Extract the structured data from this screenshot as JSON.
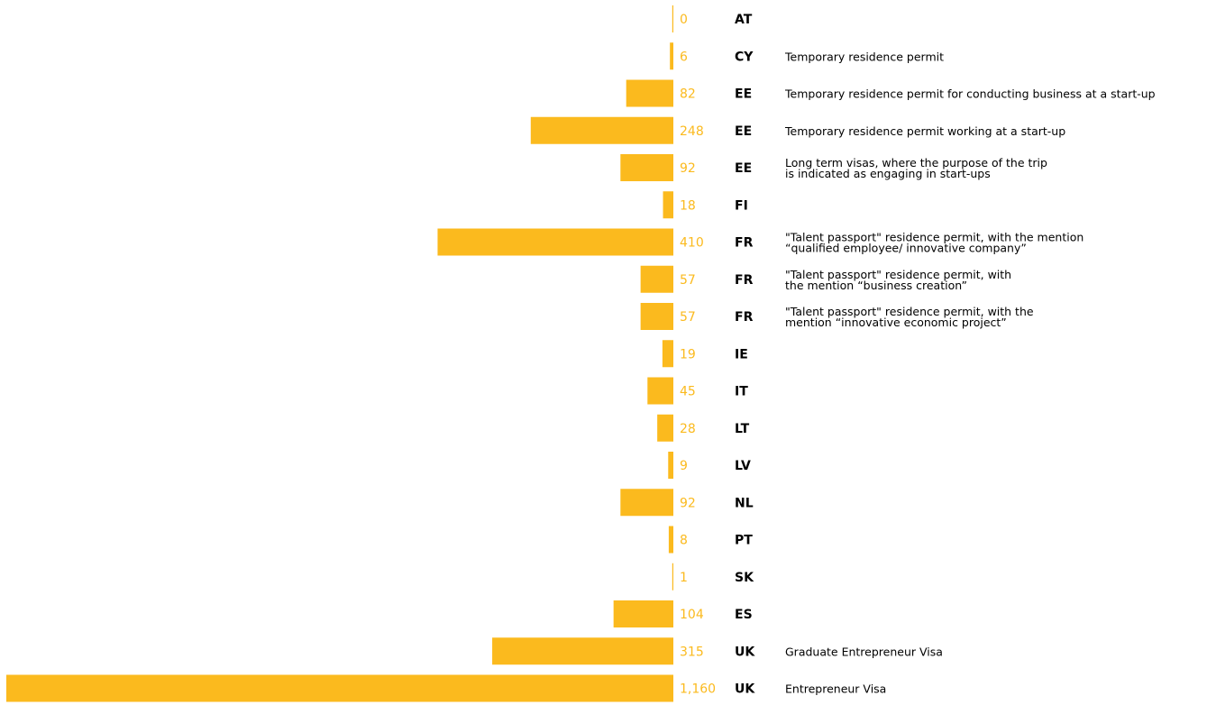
{
  "chart_data": {
    "type": "bar",
    "orientation": "horizontal",
    "bar_color": "#FBBA1E",
    "value_label_color": "#FBBA1E",
    "code_color": "#000000",
    "desc_color": "#000000",
    "xlim": [
      0,
      1160
    ],
    "rows": [
      {
        "code": "AT",
        "value": 0,
        "label": "0",
        "desc": []
      },
      {
        "code": "CY",
        "value": 6,
        "label": "6",
        "desc": [
          "Temporary residence permit"
        ]
      },
      {
        "code": "EE",
        "value": 82,
        "label": "82",
        "desc": [
          "Temporary residence permit for conducting business at a start-up"
        ]
      },
      {
        "code": "EE",
        "value": 248,
        "label": "248",
        "desc": [
          "Temporary residence permit working at a start-up"
        ]
      },
      {
        "code": "EE",
        "value": 92,
        "label": "92",
        "desc": [
          "Long term visas, where the purpose of the trip",
          "is indicated as engaging in start-ups"
        ]
      },
      {
        "code": "FI",
        "value": 18,
        "label": "18",
        "desc": []
      },
      {
        "code": "FR",
        "value": 410,
        "label": "410",
        "desc": [
          "\"Talent passport\" residence permit, with the mention",
          "“qualified employee/ innovative company”"
        ]
      },
      {
        "code": "FR",
        "value": 57,
        "label": "57",
        "desc": [
          "\"Talent passport\" residence permit, with",
          "the mention “business creation”"
        ]
      },
      {
        "code": "FR",
        "value": 57,
        "label": "57",
        "desc": [
          "\"Talent passport\" residence permit, with the",
          "mention “innovative economic project”"
        ]
      },
      {
        "code": "IE",
        "value": 19,
        "label": "19",
        "desc": []
      },
      {
        "code": "IT",
        "value": 45,
        "label": "45",
        "desc": []
      },
      {
        "code": "LT",
        "value": 28,
        "label": "28",
        "desc": []
      },
      {
        "code": "LV",
        "value": 9,
        "label": "9",
        "desc": []
      },
      {
        "code": "NL",
        "value": 92,
        "label": "92",
        "desc": []
      },
      {
        "code": "PT",
        "value": 8,
        "label": "8",
        "desc": []
      },
      {
        "code": "SK",
        "value": 1,
        "label": "1",
        "desc": []
      },
      {
        "code": "ES",
        "value": 104,
        "label": "104",
        "desc": []
      },
      {
        "code": "UK",
        "value": 315,
        "label": "315",
        "desc": [
          "Graduate Entrepreneur Visa"
        ]
      },
      {
        "code": "UK",
        "value": 1160,
        "label": "1,160",
        "desc": [
          "Entrepreneur Visa"
        ]
      }
    ]
  }
}
